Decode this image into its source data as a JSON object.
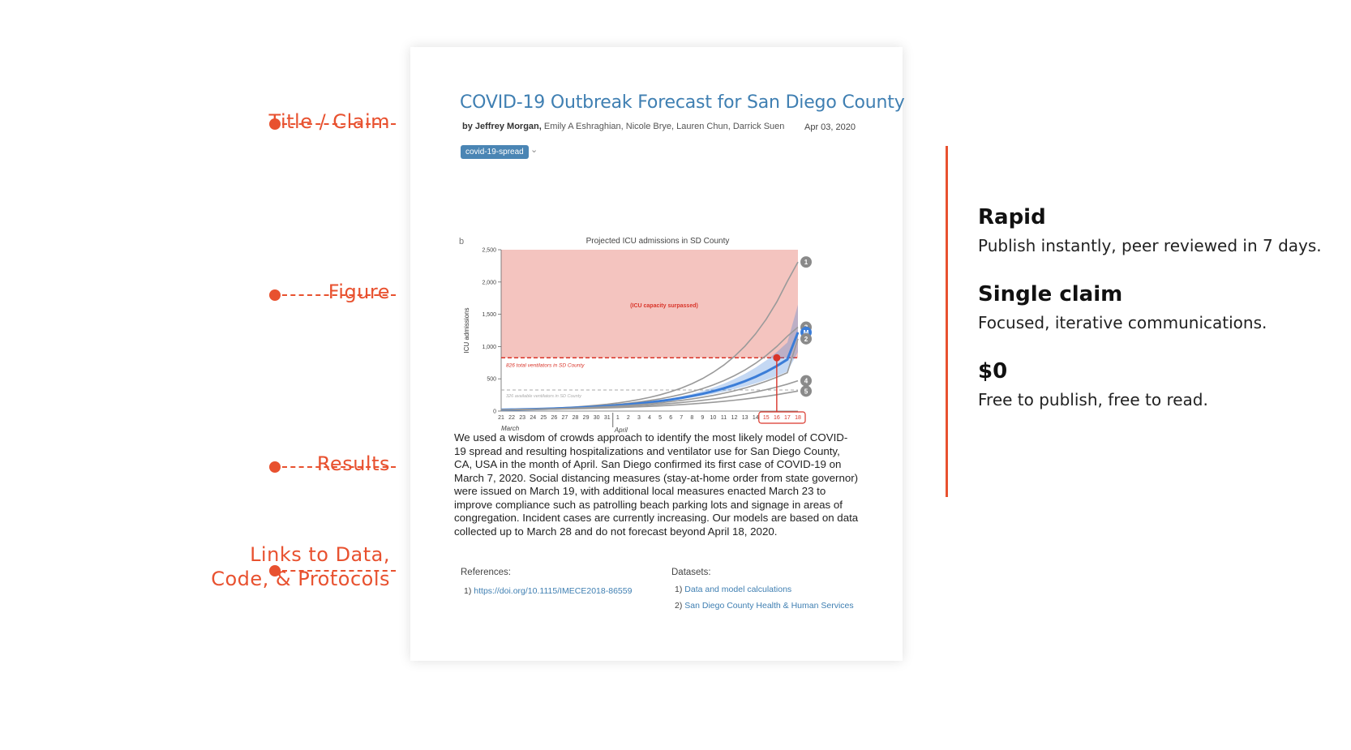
{
  "annotations": {
    "title_claim": "Title / Claim",
    "figure": "Figure",
    "results": "Results",
    "links_line1": "Links to Data,",
    "links_line2": "Code, & Protocols"
  },
  "paper": {
    "title": "COVID-19 Outbreak Forecast for San Diego County",
    "byline_lead": "by Jeffrey Morgan,",
    "byline_rest": "Emily A Eshraghian, Nicole Brye, Lauren Chun, Darrick Suen",
    "date": "Apr 03, 2020",
    "tag": "covid-19-spread",
    "tag_chevron": "⌄",
    "body": "We used a wisdom of crowds approach to identify the most likely model of COVID-19 spread and resulting hospitalizations and ventilator use for San Diego County, CA, USA in the month of April. San Diego confirmed its first case of COVID-19 on March 7, 2020. Social distancing measures (stay-at-home  order from state governor) were issued on March 19, with additional local  measures enacted March 23 to improve compliance such as patrolling beach parking lots and signage in areas of congregation. Incident cases are currently increasing. Our models are based on data collected up to March 28 and do not forecast beyond April 18, 2020.",
    "references_label": "References:",
    "references": [
      {
        "num": "1)",
        "text": "https://doi.org/10.1115/IMECE2018-86559"
      }
    ],
    "datasets_label": "Datasets:",
    "datasets": [
      {
        "num": "1)",
        "text": "Data and model calculations"
      },
      {
        "num": "2)",
        "text": "San Diego County Health & Human Services"
      }
    ]
  },
  "chart_data": {
    "type": "line",
    "panel_label": "b",
    "title": "Projected ICU admissions in SD County",
    "ylabel": "ICU admissions",
    "ylim": [
      0,
      2500
    ],
    "yticks": [
      "0",
      "500",
      "1,000",
      "1,500",
      "2,000",
      "2,500"
    ],
    "x_ticks": [
      "21",
      "22",
      "23",
      "24",
      "25",
      "26",
      "27",
      "28",
      "29",
      "30",
      "31",
      "1",
      "2",
      "3",
      "4",
      "5",
      "6",
      "7",
      "8",
      "9",
      "10",
      "11",
      "12",
      "13",
      "14",
      "15",
      "16",
      "17",
      "18"
    ],
    "x_month_labels": [
      "March",
      "April"
    ],
    "highlighted_ticks": [
      "15",
      "16",
      "17",
      "18"
    ],
    "capacity_region_label": "(ICU capacity surpassed)",
    "ventilators_total": {
      "value": 826,
      "label": "826 total ventilators in SD County"
    },
    "ventilators_available": {
      "value": 326,
      "label": "326 available ventilators in SD County"
    },
    "series": [
      {
        "name": "1",
        "color": "#9a9a9a",
        "values": [
          20,
          24,
          28,
          33,
          39,
          46,
          54,
          64,
          76,
          90,
          106,
          126,
          150,
          178,
          212,
          252,
          300,
          356,
          424,
          504,
          600,
          712,
          846,
          1006,
          1196,
          1422,
          1690,
          2010,
          2310
        ]
      },
      {
        "name": "3",
        "color": "#9a9a9a",
        "values": [
          20,
          23,
          27,
          31,
          36,
          42,
          49,
          57,
          66,
          77,
          90,
          104,
          121,
          141,
          164,
          190,
          222,
          258,
          300,
          349,
          405,
          471,
          548,
          637,
          740,
          860,
          1000,
          1160,
          1300
        ]
      },
      {
        "name": "M",
        "color": "#3b7dd8",
        "values": [
          20,
          23,
          26,
          30,
          34,
          39,
          45,
          52,
          59,
          68,
          78,
          90,
          103,
          118,
          135,
          155,
          178,
          204,
          234,
          268,
          307,
          352,
          404,
          463,
          531,
          609,
          698,
          800,
          1220
        ]
      },
      {
        "name": "2",
        "color": "#9a9a9a",
        "values": [
          20,
          22,
          25,
          28,
          32,
          36,
          41,
          47,
          53,
          60,
          68,
          77,
          88,
          100,
          113,
          128,
          146,
          166,
          188,
          214,
          243,
          276,
          314,
          357,
          406,
          461,
          524,
          595,
          1120
        ]
      },
      {
        "name": "4",
        "color": "#9a9a9a",
        "values": [
          20,
          22,
          24,
          27,
          30,
          34,
          38,
          42,
          47,
          53,
          60,
          67,
          75,
          84,
          94,
          106,
          119,
          133,
          149,
          167,
          187,
          210,
          236,
          264,
          296,
          332,
          372,
          417,
          470
        ]
      },
      {
        "name": "5",
        "color": "#9a9a9a",
        "values": [
          20,
          21,
          23,
          25,
          27,
          30,
          33,
          36,
          40,
          44,
          49,
          54,
          60,
          66,
          73,
          81,
          90,
          100,
          111,
          123,
          136,
          151,
          168,
          186,
          206,
          229,
          254,
          282,
          310
        ]
      }
    ],
    "marker_point": {
      "x": "16",
      "y": 826
    }
  },
  "features": [
    {
      "title": "Rapid",
      "desc": "Publish instantly, peer reviewed in 7 days."
    },
    {
      "title": "Single claim",
      "desc": "Focused, iterative communications."
    },
    {
      "title": "$0",
      "desc": "Free to publish, free to read."
    }
  ],
  "colors": {
    "accent": "#e8512f",
    "link": "#3f7fb2",
    "capacity_fill": "#f4c4bf",
    "model_blue": "#3b7dd8"
  }
}
